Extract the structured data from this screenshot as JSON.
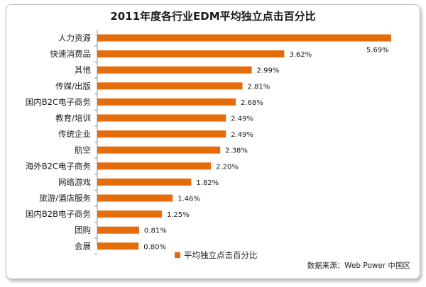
{
  "chart_data": {
    "type": "bar",
    "orientation": "horizontal",
    "title": "2011年度各行业EDM平均独立点击百分比",
    "categories": [
      "人力资源",
      "快速消费品",
      "其他",
      "传媒/出版",
      "国内B2C电子商务",
      "教育/培训",
      "传统企业",
      "航空",
      "海外B2C电子商务",
      "网络游戏",
      "旅游/酒店服务",
      "国内B2B电子商务",
      "团购",
      "会展"
    ],
    "series": [
      {
        "name": "平均独立点击百分比",
        "values": [
          5.69,
          3.62,
          2.99,
          2.81,
          2.68,
          2.49,
          2.49,
          2.38,
          2.2,
          1.82,
          1.46,
          1.25,
          0.81,
          0.8
        ],
        "labels": [
          "5.69%",
          "3.62%",
          "2.99%",
          "2.81%",
          "2.68%",
          "2.49%",
          "2.49%",
          "2.38%",
          "2.20%",
          "1.82%",
          "1.46%",
          "1.25%",
          "0.81%",
          "0.80%"
        ]
      }
    ],
    "xlim": [
      0,
      5.69
    ],
    "grid": false,
    "legend_position": "bottom",
    "source": "数据来源：Web Power 中国区",
    "bar_color": "#E46C0A"
  }
}
